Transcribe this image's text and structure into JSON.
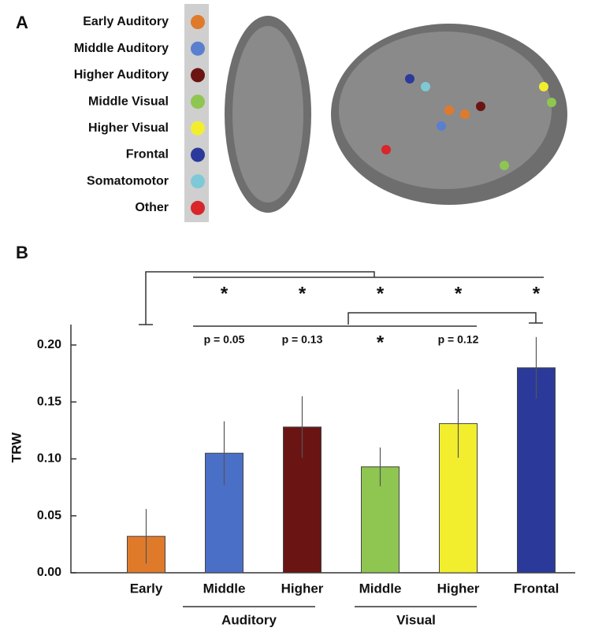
{
  "panel_a": {
    "label": "A",
    "legend": [
      {
        "name": "Early Auditory",
        "color": "#e07a2b"
      },
      {
        "name": "Middle Auditory",
        "color": "#5b7fcf"
      },
      {
        "name": "Higher Auditory",
        "color": "#6b1414"
      },
      {
        "name": "Middle Visual",
        "color": "#8ec651"
      },
      {
        "name": "Higher Visual",
        "color": "#f2ee2e"
      },
      {
        "name": "Frontal",
        "color": "#2b3a9a"
      },
      {
        "name": "Somatomotor",
        "color": "#7fc9d6"
      },
      {
        "name": "Other",
        "color": "#d8262a"
      }
    ]
  },
  "chart_data": {
    "type": "bar",
    "panel_label": "B",
    "ylabel": "TRW",
    "categories": [
      "Early",
      "Middle",
      "Higher",
      "Middle",
      "Higher",
      "Frontal"
    ],
    "values": [
      0.032,
      0.105,
      0.128,
      0.093,
      0.131,
      0.18
    ],
    "errors": [
      0.024,
      0.028,
      0.027,
      0.017,
      0.03,
      0.027
    ],
    "colors": [
      "#e07a2b",
      "#4a6fc6",
      "#6b1414",
      "#8ec651",
      "#f2ee2e",
      "#2b3a9a"
    ],
    "groups": [
      "Auditory",
      "Visual"
    ],
    "annotations": [
      "p = 0.05",
      "p = 0.13",
      "*",
      "p = 0.12"
    ],
    "significance": [
      "*",
      "*",
      "*",
      "*",
      "*"
    ],
    "ylim": [
      0,
      0.22
    ],
    "yticks": [
      {
        "value": 0,
        "label": "0.00"
      },
      {
        "value": 0.05,
        "label": "0.05"
      },
      {
        "value": 0.1,
        "label": "0.10"
      },
      {
        "value": 0.15,
        "label": "0.15"
      },
      {
        "value": 0.2,
        "label": "0.20"
      }
    ]
  }
}
